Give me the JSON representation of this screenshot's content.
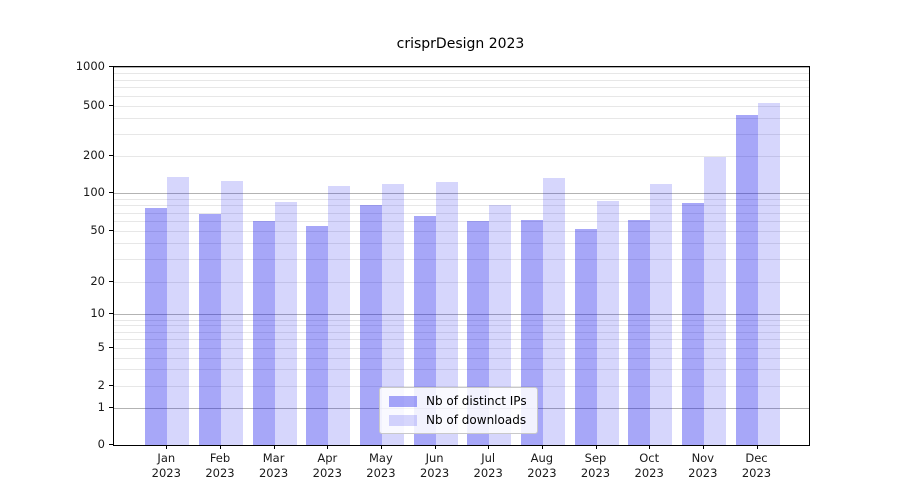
{
  "title": "crisprDesign 2023",
  "colors": {
    "ips_bar": "rgba(10,10,235,0.36)",
    "downloads_bar": "rgba(10,10,235,0.17)",
    "ips_hex": "#a7a7f9",
    "downloads_hex": "#d9d9fa",
    "grid_major": "#b3b3b3",
    "grid_minor": "#e7e7e7",
    "spine": "#000000",
    "text": "#1a1a1a"
  },
  "chart_data": {
    "type": "bar",
    "title": "crisprDesign 2023",
    "categories": [
      "Jan 2023",
      "Feb 2023",
      "Mar 2023",
      "Apr 2023",
      "May 2023",
      "Jun 2023",
      "Jul 2023",
      "Aug 2023",
      "Sep 2023",
      "Oct 2023",
      "Nov 2023",
      "Dec 2023"
    ],
    "series": [
      {
        "name": "Nb of distinct IPs",
        "color": "rgba(10,10,235,0.36)",
        "values": [
          76,
          68,
          60,
          55,
          80,
          66,
          60,
          61,
          52,
          61,
          83,
          425
        ]
      },
      {
        "name": "Nb of downloads",
        "color": "rgba(10,10,235,0.17)",
        "values": [
          136,
          126,
          85,
          115,
          119,
          124,
          81,
          132,
          86,
          118,
          198,
          525
        ]
      }
    ],
    "yscale": "symlog",
    "yticks": [
      0,
      1,
      2,
      5,
      10,
      20,
      50,
      100,
      200,
      500,
      1000
    ],
    "ylim": [
      0,
      1000
    ],
    "xlabel": "",
    "ylabel": "",
    "grid": true,
    "legend_position": "lower center"
  }
}
